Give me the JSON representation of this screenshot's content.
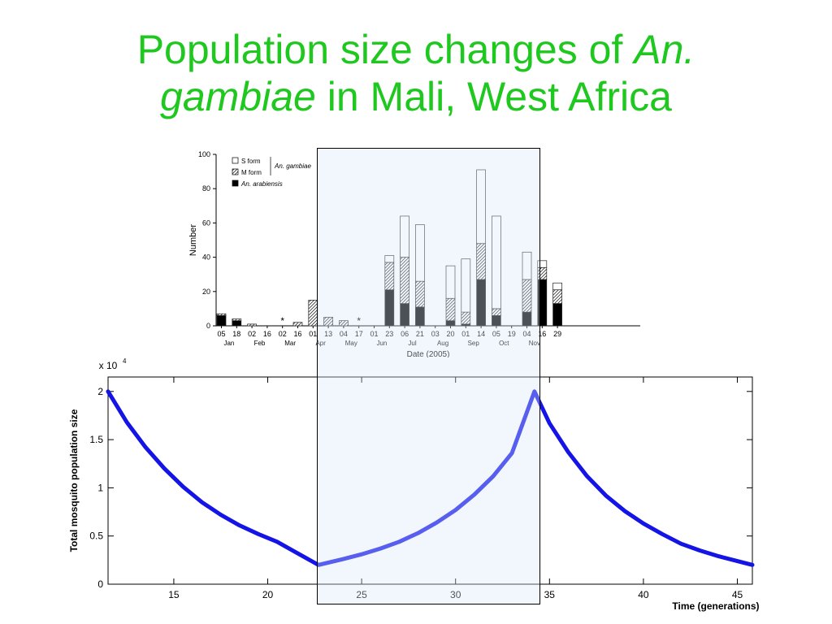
{
  "title": {
    "part1": "Population size changes of ",
    "part2": "An.",
    "part3": "gambiae",
    "part4": " in Mali, West Africa"
  },
  "colors": {
    "title": "#1ec81e",
    "line": "#1414e6",
    "highlight_fill": "#eef5fc"
  },
  "chart_data": [
    {
      "type": "bar",
      "stacked": true,
      "xlabel": "Date (2005)",
      "ylabel": "Number",
      "ylim": [
        0,
        100
      ],
      "yticks": [
        0,
        20,
        40,
        60,
        80,
        100
      ],
      "categories": [
        "05",
        "18",
        "02",
        "16",
        "02",
        "16",
        "01",
        "13",
        "04",
        "17",
        "01",
        "23",
        "06",
        "21",
        "03",
        "20",
        "01",
        "14",
        "05",
        "19",
        "04",
        "16",
        "29"
      ],
      "months": [
        {
          "label": "Jan",
          "slot": 0.5
        },
        {
          "label": "Feb",
          "slot": 2.5
        },
        {
          "label": "Mar",
          "slot": 4.5
        },
        {
          "label": "Apr",
          "slot": 6.5
        },
        {
          "label": "May",
          "slot": 8.5
        },
        {
          "label": "Jun",
          "slot": 10.5
        },
        {
          "label": "Jul",
          "slot": 12.5
        },
        {
          "label": "Aug",
          "slot": 14.5
        },
        {
          "label": "Sep",
          "slot": 16.5
        },
        {
          "label": "Oct",
          "slot": 18.5
        },
        {
          "label": "Nov",
          "slot": 20.5
        }
      ],
      "legend": {
        "entries": [
          "S form",
          "M form",
          "An. arabiensis"
        ],
        "group_label": "An. gambiae"
      },
      "series": [
        {
          "name": "An. arabiensis",
          "values": [
            6,
            3,
            0,
            0,
            0,
            0,
            0,
            0,
            0,
            0,
            0,
            21,
            13,
            11,
            0,
            3,
            1,
            27,
            6,
            0,
            8,
            27,
            13
          ]
        },
        {
          "name": "M form",
          "values": [
            1,
            1,
            1,
            0,
            0,
            2,
            15,
            5,
            3,
            0,
            0,
            16,
            27,
            15,
            0,
            13,
            7,
            21,
            4,
            0,
            19,
            7,
            8
          ]
        },
        {
          "name": "S form",
          "values": [
            0,
            0,
            0,
            0,
            0,
            0,
            0,
            0,
            0,
            0,
            0,
            4,
            24,
            33,
            0,
            19,
            31,
            43,
            54,
            0,
            16,
            4,
            4
          ]
        }
      ],
      "markers": [
        {
          "category": "02",
          "text": "*"
        },
        {
          "category": "17",
          "text": "*"
        }
      ]
    },
    {
      "type": "line",
      "xlabel": "Time (generations)",
      "ylabel": "Total mosquito population size",
      "y_multiplier_base": "x 10",
      "y_multiplier_exp": "4",
      "xlim": [
        11.5,
        45.8
      ],
      "ylim": [
        0,
        2.15
      ],
      "xticks": [
        15,
        20,
        25,
        30,
        35,
        40,
        45
      ],
      "yticks": [
        0,
        0.5,
        1,
        1.5,
        2
      ],
      "ytick_labels": [
        "0",
        "0.5",
        "1",
        "1.5",
        "2"
      ],
      "series": [
        {
          "x": [
            11.5,
            12.5,
            13.5,
            14.5,
            15.5,
            16.5,
            17.5,
            18.5,
            19.5,
            20.5,
            21.5,
            22.7,
            24.0,
            25.0,
            26.0,
            27.0,
            28.0,
            29.0,
            30.0,
            31.0,
            32.0,
            33.0,
            34.2,
            35.0,
            36.0,
            37.0,
            38.0,
            39.0,
            40.0,
            41.0,
            42.0,
            43.0,
            44.0,
            45.0,
            45.8
          ],
          "y": [
            2.0,
            1.68,
            1.42,
            1.2,
            1.01,
            0.85,
            0.72,
            0.61,
            0.52,
            0.44,
            0.33,
            0.2,
            0.26,
            0.31,
            0.37,
            0.44,
            0.53,
            0.64,
            0.77,
            0.93,
            1.12,
            1.36,
            2.0,
            1.67,
            1.37,
            1.12,
            0.92,
            0.76,
            0.63,
            0.52,
            0.42,
            0.35,
            0.29,
            0.24,
            0.2
          ]
        }
      ]
    }
  ]
}
